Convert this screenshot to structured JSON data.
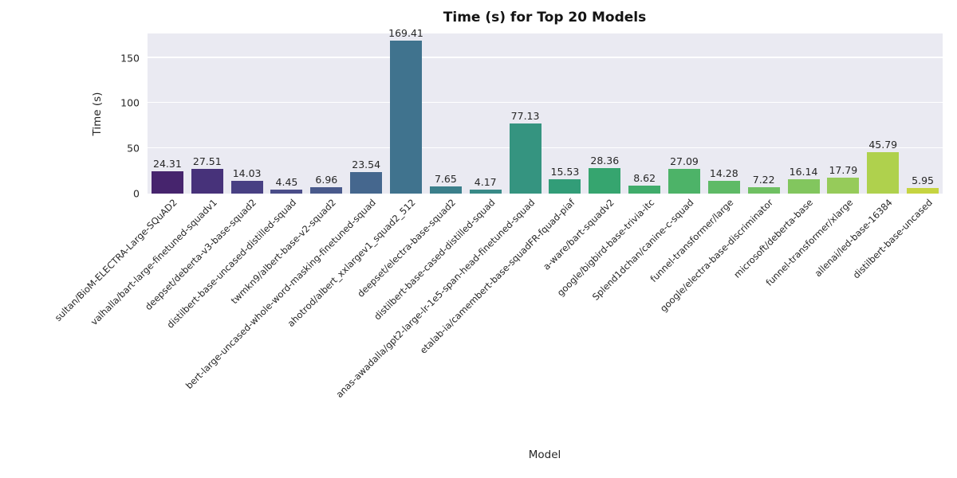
{
  "chart_data": {
    "type": "bar",
    "title": "Time (s) for Top 20 Models",
    "xlabel": "Model",
    "ylabel": "Time (s)",
    "categories": [
      "sultan/BioM-ELECTRA-Large-SQuAD2",
      "valhalla/bart-large-finetuned-squadv1",
      "deepset/deberta-v3-base-squad2",
      "distilbert-base-uncased-distilled-squad",
      "twmkn9/albert-base-v2-squad2",
      "bert-large-uncased-whole-word-masking-finetuned-squad",
      "ahotrod/albert_xxlargev1_squad2_512",
      "deepset/electra-base-squad2",
      "distilbert-base-cased-distilled-squad",
      "anas-awadalla/gpt2-large-lr-1e5-span-head-finetuned-squad",
      "etalab-ia/camembert-base-squadFR-fquad-piaf",
      "a-ware/bart-squadv2",
      "google/bigbird-base-trivia-itc",
      "Splend1dchan/canine-c-squad",
      "funnel-transformer/large",
      "google/electra-base-discriminator",
      "microsoft/deberta-base",
      "funnel-transformer/xlarge",
      "allenai/led-base-16384",
      "distilbert-base-uncased"
    ],
    "values": [
      24.31,
      27.51,
      14.03,
      4.45,
      6.96,
      23.54,
      169.41,
      7.65,
      4.17,
      77.13,
      15.53,
      28.36,
      8.62,
      27.09,
      14.28,
      7.22,
      16.14,
      17.79,
      45.79,
      5.95
    ],
    "value_labels": [
      "24.31",
      "27.51",
      "14.03",
      "4.45",
      "6.96",
      "23.54",
      "169.41",
      "7.65",
      "4.17",
      "77.13",
      "15.53",
      "28.36",
      "8.62",
      "27.09",
      "14.28",
      "7.22",
      "16.14",
      "17.79",
      "45.79",
      "5.95"
    ],
    "bar_colors": [
      "#46246d",
      "#47327a",
      "#484083",
      "#4a4d89",
      "#495a8c",
      "#45678e",
      "#40738e",
      "#3b7f8b",
      "#388a87",
      "#359480",
      "#329d78",
      "#36a56f",
      "#40ac6b",
      "#4db368",
      "#5eba66",
      "#6fc062",
      "#82c65e",
      "#96cb5a",
      "#afd14d",
      "#c6d441"
    ],
    "yticks": [
      0,
      50,
      100,
      150
    ],
    "ytick_labels": [
      "0",
      "50",
      "100",
      "150"
    ],
    "ylim": [
      0,
      177
    ],
    "grid": true,
    "legend": false,
    "plot_background": "#eaeaf2",
    "grid_color": "#ffffff",
    "text_color": "#262626"
  }
}
